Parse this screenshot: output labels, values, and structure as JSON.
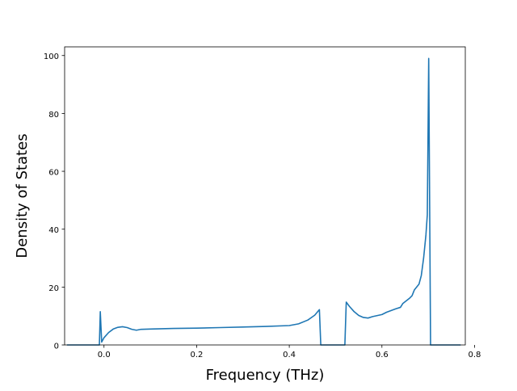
{
  "chart_data": {
    "type": "line",
    "title": "",
    "xlabel": "Frequency (THz)",
    "ylabel": "Density of States",
    "xlim": [
      -0.085,
      0.78
    ],
    "ylim": [
      0,
      103
    ],
    "xticks": [
      0.0,
      0.2,
      0.4,
      0.6,
      0.8
    ],
    "xtick_labels": [
      "0.0",
      "0.2",
      "0.4",
      "0.6",
      "0.8"
    ],
    "yticks": [
      0,
      20,
      40,
      60,
      80,
      100
    ],
    "ytick_labels": [
      "0",
      "20",
      "40",
      "60",
      "80",
      "100"
    ],
    "grid": false,
    "legend": "none",
    "line_color": "#1f77b4",
    "series": [
      {
        "x": [
          -0.08,
          -0.01,
          -0.008,
          -0.005,
          0.0,
          0.01,
          0.02,
          0.03,
          0.04,
          0.05,
          0.06,
          0.07,
          0.08,
          0.1,
          0.15,
          0.2,
          0.25,
          0.3,
          0.35,
          0.4,
          0.42,
          0.44,
          0.455,
          0.465,
          0.468,
          0.52,
          0.523,
          0.53,
          0.54,
          0.55,
          0.56,
          0.57,
          0.58,
          0.6,
          0.61,
          0.63,
          0.64,
          0.645,
          0.66,
          0.665,
          0.67,
          0.68,
          0.685,
          0.69,
          0.695,
          0.698,
          0.701,
          0.705,
          0.72,
          0.77
        ],
        "y": [
          0,
          0,
          11.5,
          1.0,
          2.5,
          4.3,
          5.5,
          6.1,
          6.3,
          6.0,
          5.4,
          5.1,
          5.4,
          5.5,
          5.7,
          5.8,
          6.0,
          6.2,
          6.4,
          6.7,
          7.3,
          8.6,
          10.3,
          12.2,
          0,
          0,
          14.8,
          13.3,
          11.5,
          10.2,
          9.5,
          9.3,
          9.8,
          10.5,
          11.3,
          12.5,
          13.0,
          14.3,
          16.2,
          17.0,
          19.0,
          21.0,
          24.0,
          30.0,
          38.0,
          45.0,
          99.0,
          0,
          0,
          0
        ]
      }
    ]
  }
}
